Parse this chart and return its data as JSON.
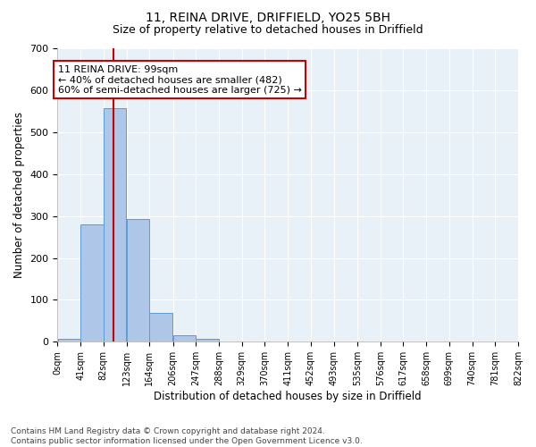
{
  "title1": "11, REINA DRIVE, DRIFFIELD, YO25 5BH",
  "title2": "Size of property relative to detached houses in Driffield",
  "xlabel": "Distribution of detached houses by size in Driffield",
  "ylabel": "Number of detached properties",
  "footnote1": "Contains HM Land Registry data © Crown copyright and database right 2024.",
  "footnote2": "Contains public sector information licensed under the Open Government Licence v3.0.",
  "bin_edges": [
    0,
    41,
    82,
    123,
    164,
    206,
    247,
    288,
    329,
    370,
    411,
    452,
    493,
    535,
    576,
    617,
    658,
    699,
    740,
    781,
    822
  ],
  "bar_heights": [
    8,
    280,
    557,
    292,
    68,
    15,
    8,
    0,
    0,
    0,
    0,
    0,
    0,
    0,
    0,
    0,
    0,
    0,
    0,
    0
  ],
  "bar_color": "#aec6e8",
  "bar_edge_color": "#5b9bd5",
  "property_size": 99,
  "property_line_color": "#cc0000",
  "annotation_line1": "11 REINA DRIVE: 99sqm",
  "annotation_line2": "← 40% of detached houses are smaller (482)",
  "annotation_line3": "60% of semi-detached houses are larger (725) →",
  "annotation_box_color": "#cc0000",
  "ylim": [
    0,
    700
  ],
  "yticks": [
    0,
    100,
    200,
    300,
    400,
    500,
    600,
    700
  ],
  "background_color": "#e8f0f8",
  "grid_color": "#ffffff",
  "fig_background": "#ffffff",
  "title1_fontsize": 10,
  "title2_fontsize": 9,
  "xlabel_fontsize": 8.5,
  "ylabel_fontsize": 8.5,
  "tick_fontsize": 7,
  "footnote_fontsize": 6.5,
  "annotation_fontsize": 8
}
